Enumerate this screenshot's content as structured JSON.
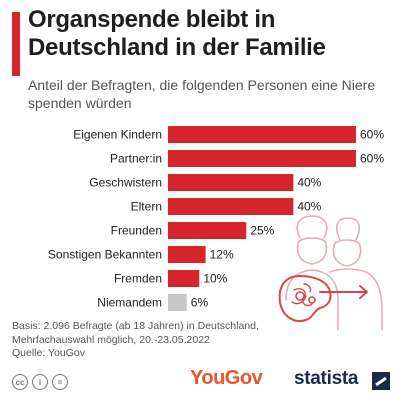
{
  "header": {
    "title": "Organspende bleibt in Deutschland in der Familie",
    "subtitle": "Anteil der Befragten, die folgenden Personen eine Niere spenden würden"
  },
  "chart_data": {
    "type": "bar",
    "orientation": "horizontal",
    "categories": [
      "Eigenen Kindern",
      "Partner:in",
      "Geschwistern",
      "Eltern",
      "Freunden",
      "Sonstigen Bekannten",
      "Fremden",
      "Niemandem"
    ],
    "values": [
      60,
      60,
      40,
      40,
      25,
      12,
      10,
      6
    ],
    "value_labels": [
      "60%",
      "60%",
      "40%",
      "40%",
      "25%",
      "12%",
      "10%",
      "6%"
    ],
    "bar_colors": [
      "#d7262b",
      "#d7262b",
      "#d7262b",
      "#d7262b",
      "#d7262b",
      "#d7262b",
      "#d7262b",
      "#c8c8c8"
    ],
    "xlim": [
      0,
      60
    ],
    "grid": false,
    "legend": "none"
  },
  "illustration": {
    "icon": "kidney-donation-people-icon",
    "color": "#d7262b"
  },
  "footer": {
    "basis_line1": "Basis: 2.096 Befragte (ab 18 Jahren) in Deutschland,",
    "basis_line2": "Mehrfachauswahl möglich, 20.-23.05.2022",
    "source": "Quelle: YouGov",
    "yougov_logo": "YouGov",
    "statista_logo": "statista"
  },
  "colors": {
    "accent": "#d7262b",
    "neutral_bar": "#c8c8c8",
    "statista_brand": "#1a2b4b",
    "yougov_brand": "#e4572e"
  }
}
